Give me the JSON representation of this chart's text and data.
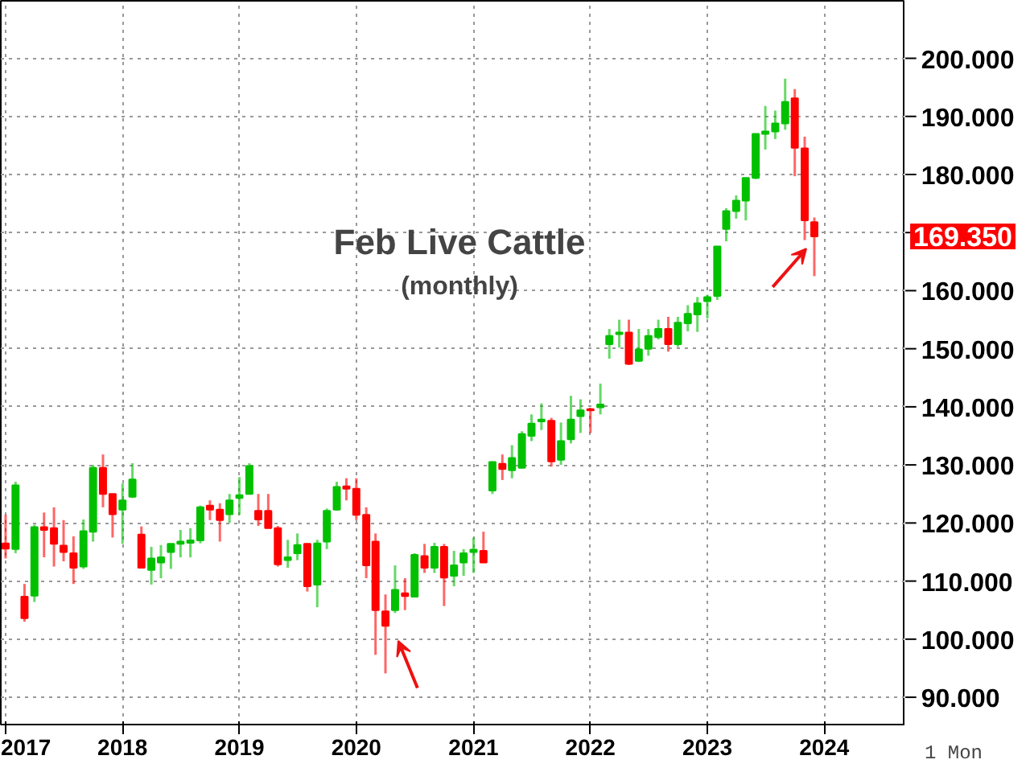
{
  "chart_data": {
    "type": "candlestick",
    "title": "Feb Live Cattle",
    "subtitle": "(monthly)",
    "x": [
      "2017-01",
      "2017-02",
      "2017-03",
      "2017-04",
      "2017-05",
      "2017-06",
      "2017-07",
      "2017-08",
      "2017-09",
      "2017-10",
      "2017-11",
      "2017-12",
      "2018-01",
      "2018-02",
      "2018-03",
      "2018-04",
      "2018-05",
      "2018-06",
      "2018-07",
      "2018-08",
      "2018-09",
      "2018-10",
      "2018-11",
      "2018-12",
      "2019-01",
      "2019-02",
      "2019-03",
      "2019-04",
      "2019-05",
      "2019-06",
      "2019-07",
      "2019-08",
      "2019-09",
      "2019-10",
      "2019-11",
      "2019-12",
      "2020-01",
      "2020-02",
      "2020-03",
      "2020-04",
      "2020-05",
      "2020-06",
      "2020-07",
      "2020-08",
      "2020-09",
      "2020-10",
      "2020-11",
      "2020-12",
      "2021-01",
      "2021-02",
      "2021-03",
      "2021-04",
      "2021-05",
      "2021-06",
      "2021-07",
      "2021-08",
      "2021-09",
      "2021-10",
      "2021-11",
      "2021-12",
      "2022-01",
      "2022-02",
      "2022-03",
      "2022-04",
      "2022-05",
      "2022-06",
      "2022-07",
      "2022-08",
      "2022-09",
      "2022-10",
      "2022-11",
      "2022-12",
      "2023-01",
      "2023-02",
      "2023-03",
      "2023-04",
      "2023-05",
      "2023-06",
      "2023-07",
      "2023-08",
      "2023-09",
      "2023-10",
      "2023-11",
      "2023-12"
    ],
    "ohlc": [
      [
        116.5,
        121.4,
        113.9,
        115.6
      ],
      [
        115.5,
        127.1,
        114.8,
        126.5
      ],
      [
        107.3,
        109.5,
        103.0,
        103.6
      ],
      [
        107.5,
        119.7,
        106.4,
        119.3
      ],
      [
        119.3,
        121.8,
        114.1,
        118.8
      ],
      [
        119.1,
        122.7,
        112.5,
        116.4
      ],
      [
        116.1,
        120.5,
        113.4,
        115.0
      ],
      [
        114.8,
        117.7,
        109.5,
        112.3
      ],
      [
        112.5,
        120.6,
        112.1,
        118.6
      ],
      [
        118.5,
        130.0,
        116.8,
        129.5
      ],
      [
        129.5,
        131.8,
        122.7,
        125.0
      ],
      [
        125.0,
        125.0,
        117.5,
        121.5
      ],
      [
        122.3,
        126.8,
        116.4,
        123.9
      ],
      [
        124.5,
        130.3,
        124.3,
        127.5
      ],
      [
        118.0,
        119.4,
        112.3,
        112.3
      ],
      [
        111.9,
        115.9,
        109.4,
        113.9
      ],
      [
        113.2,
        116.2,
        110.5,
        114.1
      ],
      [
        115.0,
        116.4,
        112.1,
        116.4
      ],
      [
        116.4,
        118.8,
        114.1,
        116.8
      ],
      [
        116.6,
        119.1,
        114.1,
        117.0
      ],
      [
        117.0,
        123.0,
        116.5,
        122.7
      ],
      [
        123.0,
        123.9,
        120.5,
        122.3
      ],
      [
        122.3,
        123.4,
        116.8,
        120.5
      ],
      [
        121.5,
        125.0,
        120.0,
        123.9
      ],
      [
        124.3,
        127.9,
        121.4,
        124.8
      ],
      [
        125.0,
        130.3,
        125.0,
        129.8
      ],
      [
        122.1,
        125.0,
        119.5,
        120.6
      ],
      [
        122.1,
        125.0,
        119.1,
        119.1
      ],
      [
        119.1,
        119.5,
        112.5,
        112.9
      ],
      [
        113.6,
        117.1,
        112.3,
        114.1
      ],
      [
        114.8,
        118.2,
        113.6,
        116.2
      ],
      [
        116.4,
        116.5,
        108.2,
        109.1
      ],
      [
        109.4,
        117.1,
        105.5,
        116.5
      ],
      [
        116.8,
        122.5,
        115.5,
        122.1
      ],
      [
        122.3,
        127.1,
        122.1,
        126.2
      ],
      [
        126.3,
        127.7,
        123.9,
        125.9
      ],
      [
        125.9,
        127.7,
        120.5,
        121.4
      ],
      [
        121.4,
        122.7,
        110.5,
        112.7
      ],
      [
        116.8,
        118.2,
        97.3,
        105.0
      ],
      [
        104.8,
        107.7,
        94.1,
        102.3
      ],
      [
        105.0,
        112.7,
        104.5,
        108.5
      ],
      [
        107.9,
        110.5,
        105.0,
        107.4
      ],
      [
        107.3,
        114.8,
        107.3,
        114.5
      ],
      [
        114.3,
        116.4,
        111.4,
        112.3
      ],
      [
        112.3,
        116.6,
        111.4,
        115.9
      ],
      [
        115.9,
        116.4,
        105.7,
        110.6
      ],
      [
        110.9,
        115.2,
        109.1,
        112.7
      ],
      [
        113.2,
        115.5,
        110.9,
        114.8
      ],
      [
        115.0,
        117.5,
        111.4,
        115.4
      ],
      [
        115.2,
        118.5,
        113.2,
        113.2
      ],
      [
        125.6,
        130.6,
        125.0,
        130.5
      ],
      [
        130.2,
        131.8,
        127.4,
        129.3
      ],
      [
        129.1,
        133.4,
        127.7,
        131.2
      ],
      [
        129.5,
        135.8,
        129.4,
        135.3
      ],
      [
        135.0,
        138.7,
        134.1,
        137.1
      ],
      [
        137.5,
        140.6,
        136.0,
        137.8
      ],
      [
        137.6,
        138.1,
        129.7,
        130.6
      ],
      [
        130.9,
        137.3,
        130.0,
        134.1
      ],
      [
        134.4,
        141.9,
        133.7,
        137.8
      ],
      [
        138.4,
        141.3,
        135.5,
        139.4
      ],
      [
        139.6,
        139.8,
        135.5,
        139.4
      ],
      [
        139.9,
        144.0,
        138.7,
        140.4
      ],
      [
        150.8,
        153.4,
        148.3,
        152.2
      ],
      [
        152.5,
        155.0,
        150.2,
        152.8
      ],
      [
        152.8,
        155.0,
        147.2,
        147.4
      ],
      [
        147.9,
        153.4,
        147.7,
        149.9
      ],
      [
        150.0,
        153.4,
        148.8,
        152.2
      ],
      [
        152.0,
        155.0,
        151.6,
        153.4
      ],
      [
        153.4,
        155.5,
        149.5,
        150.8
      ],
      [
        150.8,
        155.5,
        150.3,
        154.5
      ],
      [
        154.4,
        157.5,
        153.0,
        156.0
      ],
      [
        155.9,
        158.9,
        152.9,
        157.8
      ],
      [
        158.2,
        159.3,
        155.2,
        158.9
      ],
      [
        159.1,
        167.6,
        158.4,
        167.6
      ],
      [
        170.6,
        174.2,
        168.5,
        173.7
      ],
      [
        173.7,
        176.4,
        172.4,
        175.5
      ],
      [
        175.5,
        179.4,
        172.1,
        179.4
      ],
      [
        179.4,
        187.0,
        179.2,
        187.0
      ],
      [
        187.0,
        191.8,
        184.3,
        187.4
      ],
      [
        187.4,
        191.0,
        186.1,
        188.8
      ],
      [
        188.8,
        196.5,
        187.7,
        192.5
      ],
      [
        193.1,
        194.7,
        179.7,
        184.6
      ],
      [
        184.5,
        186.5,
        168.7,
        172.1
      ],
      [
        171.8,
        172.6,
        162.5,
        169.35
      ]
    ],
    "colors": [
      "#ff0000",
      "#00c000",
      "#ff0000",
      "#00c000",
      "#ff0000",
      "#ff0000",
      "#ff0000",
      "#ff0000",
      "#00c000",
      "#00c000",
      "#ff0000",
      "#ff0000",
      "#00c000",
      "#00c000",
      "#ff0000",
      "#00c000",
      "#00c000",
      "#00c000",
      "#00c000",
      "#00c000",
      "#00c000",
      "#ff0000",
      "#ff0000",
      "#00c000",
      "#00c000",
      "#00c000",
      "#ff0000",
      "#ff0000",
      "#ff0000",
      "#00c000",
      "#00c000",
      "#ff0000",
      "#00c000",
      "#00c000",
      "#00c000",
      "#ff0000",
      "#ff0000",
      "#ff0000",
      "#ff0000",
      "#ff0000",
      "#00c000",
      "#ff0000",
      "#00c000",
      "#ff0000",
      "#00c000",
      "#ff0000",
      "#00c000",
      "#00c000",
      "#00c000",
      "#ff0000",
      "#00c000",
      "#ff0000",
      "#00c000",
      "#00c000",
      "#00c000",
      "#00c000",
      "#ff0000",
      "#00c000",
      "#00c000",
      "#00c000",
      "#ff0000",
      "#00c000",
      "#00c000",
      "#00c000",
      "#ff0000",
      "#00c000",
      "#00c000",
      "#00c000",
      "#ff0000",
      "#00c000",
      "#00c000",
      "#00c000",
      "#00c000",
      "#00c000",
      "#00c000",
      "#00c000",
      "#00c000",
      "#00c000",
      "#00c000",
      "#00c000",
      "#00c000",
      "#ff0000",
      "#ff0000",
      "#ff0000"
    ],
    "xlim": [
      "2016-12-17",
      "2024-09-10"
    ],
    "xticks": [
      {
        "value": "2017-01",
        "label": "2017"
      },
      {
        "value": "2018-01",
        "label": "2018"
      },
      {
        "value": "2019-01",
        "label": "2019"
      },
      {
        "value": "2020-01",
        "label": "2020"
      },
      {
        "value": "2021-01",
        "label": "2021"
      },
      {
        "value": "2022-01",
        "label": "2022"
      },
      {
        "value": "2023-01",
        "label": "2023"
      },
      {
        "value": "2024-01",
        "label": "2024"
      }
    ],
    "ylim": [
      85.3,
      209.9
    ],
    "yticks": [
      {
        "value": 90,
        "label": "90.000"
      },
      {
        "value": 100,
        "label": "100.000"
      },
      {
        "value": 110,
        "label": "110.000"
      },
      {
        "value": 120,
        "label": "120.000"
      },
      {
        "value": 130,
        "label": "130.000"
      },
      {
        "value": 140,
        "label": "140.000"
      },
      {
        "value": 150,
        "label": "150.000"
      },
      {
        "value": 160,
        "label": "160.000"
      },
      {
        "value": 170,
        "label": null
      },
      {
        "value": 180,
        "label": "180.000"
      },
      {
        "value": 190,
        "label": "190.000"
      },
      {
        "value": 200,
        "label": "200.000"
      }
    ],
    "grid": true,
    "annotations": [
      "169.350",
      "1 Mon"
    ]
  }
}
